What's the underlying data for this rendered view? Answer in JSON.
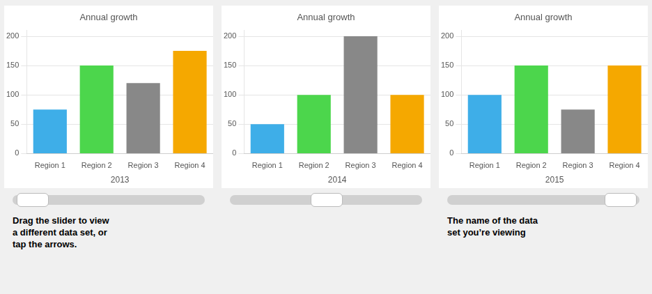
{
  "chart_data": [
    {
      "type": "bar",
      "title": "Annual growth",
      "xlabel": "2013",
      "categories": [
        "Region 1",
        "Region 2",
        "Region 3",
        "Region 4"
      ],
      "values": [
        75,
        150,
        120,
        175
      ],
      "colors": [
        "#3eaee8",
        "#4cd64c",
        "#888888",
        "#f5a800"
      ],
      "ylim": [
        0,
        210
      ],
      "yticks": [
        0,
        50,
        100,
        150,
        200
      ],
      "grid": true,
      "annotations": [
        "Drag the slider to view\na different data set, or\ntap the arrows."
      ]
    },
    {
      "type": "bar",
      "title": "Annual growth",
      "xlabel": "2014",
      "categories": [
        "Region 1",
        "Region 2",
        "Region 3",
        "Region 4"
      ],
      "values": [
        50,
        100,
        200,
        100
      ],
      "colors": [
        "#3eaee8",
        "#4cd64c",
        "#888888",
        "#f5a800"
      ],
      "ylim": [
        0,
        210
      ],
      "yticks": [
        0,
        50,
        100,
        150,
        200
      ],
      "grid": true
    },
    {
      "type": "bar",
      "title": "Annual growth",
      "xlabel": "2015",
      "categories": [
        "Region 1",
        "Region 2",
        "Region 3",
        "Region 4"
      ],
      "values": [
        100,
        150,
        75,
        150
      ],
      "colors": [
        "#3eaee8",
        "#4cd64c",
        "#888888",
        "#f5a800"
      ],
      "ylim": [
        0,
        210
      ],
      "yticks": [
        0,
        50,
        100,
        150,
        200
      ],
      "grid": true,
      "annotations": [
        "The name of the data\nset you’re viewing"
      ]
    }
  ]
}
